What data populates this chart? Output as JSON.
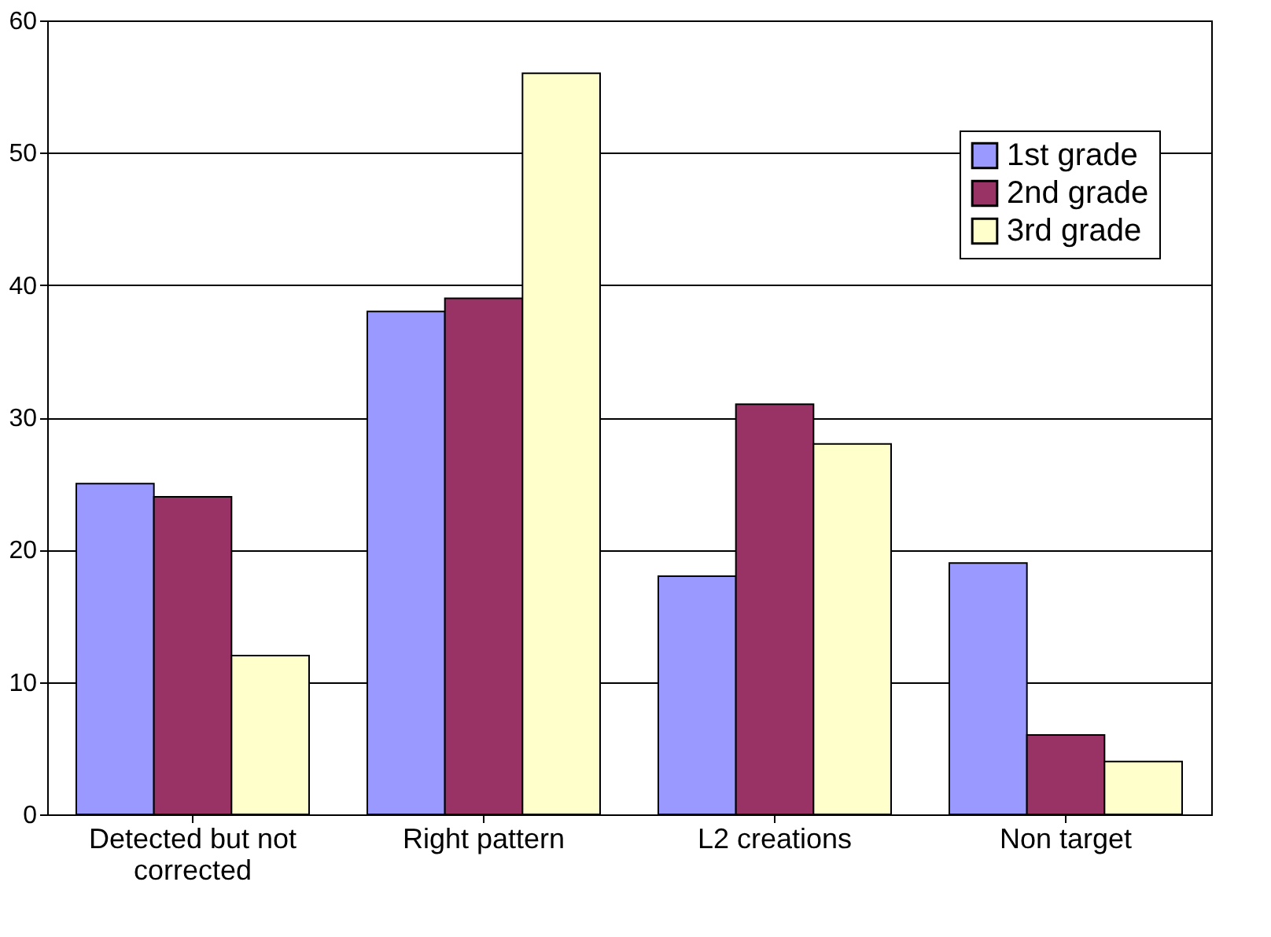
{
  "chart_data": {
    "type": "bar",
    "categories": [
      "Detected but not corrected",
      "Right pattern",
      "L2 creations",
      "Non target"
    ],
    "series": [
      {
        "name": "1st grade",
        "color": "#9999ff",
        "values": [
          25,
          38,
          18,
          19
        ]
      },
      {
        "name": "2nd grade",
        "color": "#993366",
        "values": [
          24,
          39,
          31,
          6
        ]
      },
      {
        "name": "3rd grade",
        "color": "#ffffcc",
        "values": [
          12,
          56,
          28,
          4
        ]
      }
    ],
    "ylim": [
      0,
      60
    ],
    "yticks": [
      0,
      10,
      20,
      30,
      40,
      50,
      60
    ],
    "grid": "y",
    "legend": "top right"
  }
}
